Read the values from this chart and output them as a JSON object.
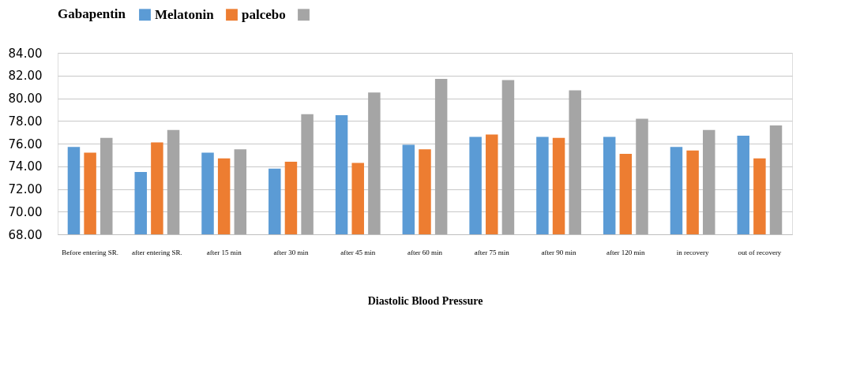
{
  "chart_data": {
    "type": "bar",
    "xlabel": "Diastolic Blood Pressure",
    "legend_title": "Gabapentin",
    "legend": "top",
    "categories": [
      "Before entering SR.",
      "after entering SR.",
      "after 15 min",
      "after 30 min",
      "after 45 min",
      "after 60 min",
      "after 75 min",
      "after 90 min",
      "after 120 min",
      "in recovery",
      "out of recovery"
    ],
    "series": [
      {
        "name": "Melatonin",
        "color": "#5b9bd5",
        "values": [
          75.7,
          73.5,
          75.2,
          73.8,
          78.5,
          75.9,
          76.6,
          76.6,
          76.6,
          75.7,
          76.7
        ]
      },
      {
        "name": "palcebo",
        "color": "#ed7d31",
        "values": [
          75.2,
          76.1,
          74.7,
          74.4,
          74.3,
          75.5,
          76.8,
          76.5,
          75.1,
          75.4,
          74.7
        ]
      },
      {
        "color": "#a5a5a5",
        "values": [
          76.5,
          77.2,
          75.5,
          78.6,
          80.5,
          81.7,
          81.6,
          80.7,
          78.2,
          77.2,
          77.6
        ]
      }
    ],
    "ylim": [
      68,
      84
    ],
    "yticks": [
      {
        "value": 68,
        "label": "68.00"
      },
      {
        "value": 70,
        "label": "70.00"
      },
      {
        "value": 72,
        "label": "72.00"
      },
      {
        "value": 74,
        "label": "74.00"
      },
      {
        "value": 76,
        "label": "76.00"
      },
      {
        "value": 78,
        "label": "78.00"
      },
      {
        "value": 80,
        "label": "80.00"
      },
      {
        "value": 82,
        "label": "82.00"
      },
      {
        "value": 84,
        "label": "84.00"
      }
    ],
    "grid": "y"
  }
}
